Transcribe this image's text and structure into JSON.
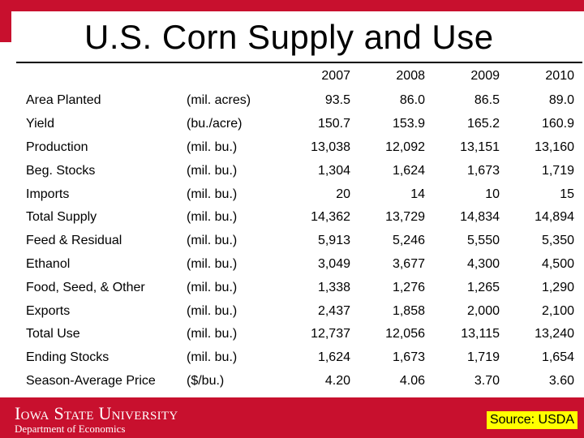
{
  "title": "U.S. Corn Supply and Use",
  "colors": {
    "accent": "#c8102e",
    "source_highlight": "#ffff00"
  },
  "table": {
    "years": [
      "2007",
      "2008",
      "2009",
      "2010"
    ],
    "rows": [
      {
        "label": "Area Planted",
        "unit": "(mil. acres)",
        "values": [
          "93.5",
          "86.0",
          "86.5",
          "89.0"
        ]
      },
      {
        "label": "Yield",
        "unit": "(bu./acre)",
        "values": [
          "150.7",
          "153.9",
          "165.2",
          "160.9"
        ]
      },
      {
        "label": "Production",
        "unit": "(mil. bu.)",
        "values": [
          "13,038",
          "12,092",
          "13,151",
          "13,160"
        ]
      },
      {
        "label": "Beg. Stocks",
        "unit": "(mil. bu.)",
        "values": [
          "1,304",
          "1,624",
          "1,673",
          "1,719"
        ]
      },
      {
        "label": "Imports",
        "unit": "(mil. bu.)",
        "values": [
          "20",
          "14",
          "10",
          "15"
        ]
      },
      {
        "label": "Total Supply",
        "unit": "(mil. bu.)",
        "values": [
          "14,362",
          "13,729",
          "14,834",
          "14,894"
        ]
      },
      {
        "label": "Feed & Residual",
        "unit": "(mil. bu.)",
        "values": [
          "5,913",
          "5,246",
          "5,550",
          "5,350"
        ]
      },
      {
        "label": "Ethanol",
        "unit": "(mil. bu.)",
        "values": [
          "3,049",
          "3,677",
          "4,300",
          "4,500"
        ]
      },
      {
        "label": "Food, Seed, & Other",
        "unit": "(mil. bu.)",
        "values": [
          "1,338",
          "1,276",
          "1,265",
          "1,290"
        ]
      },
      {
        "label": "Exports",
        "unit": "(mil. bu.)",
        "values": [
          "2,437",
          "1,858",
          "2,000",
          "2,100"
        ]
      },
      {
        "label": "Total Use",
        "unit": "(mil. bu.)",
        "values": [
          "12,737",
          "12,056",
          "13,115",
          "13,240"
        ]
      },
      {
        "label": "Ending Stocks",
        "unit": "(mil. bu.)",
        "values": [
          "1,624",
          "1,673",
          "1,719",
          "1,654"
        ]
      },
      {
        "label": "Season-Average Price",
        "unit": "($/bu.)",
        "values": [
          "4.20",
          "4.06",
          "3.70",
          "3.60"
        ]
      }
    ]
  },
  "footer": {
    "logo_text": "Iowa State University",
    "department": "Department of Economics",
    "source": "Source: USDA"
  }
}
